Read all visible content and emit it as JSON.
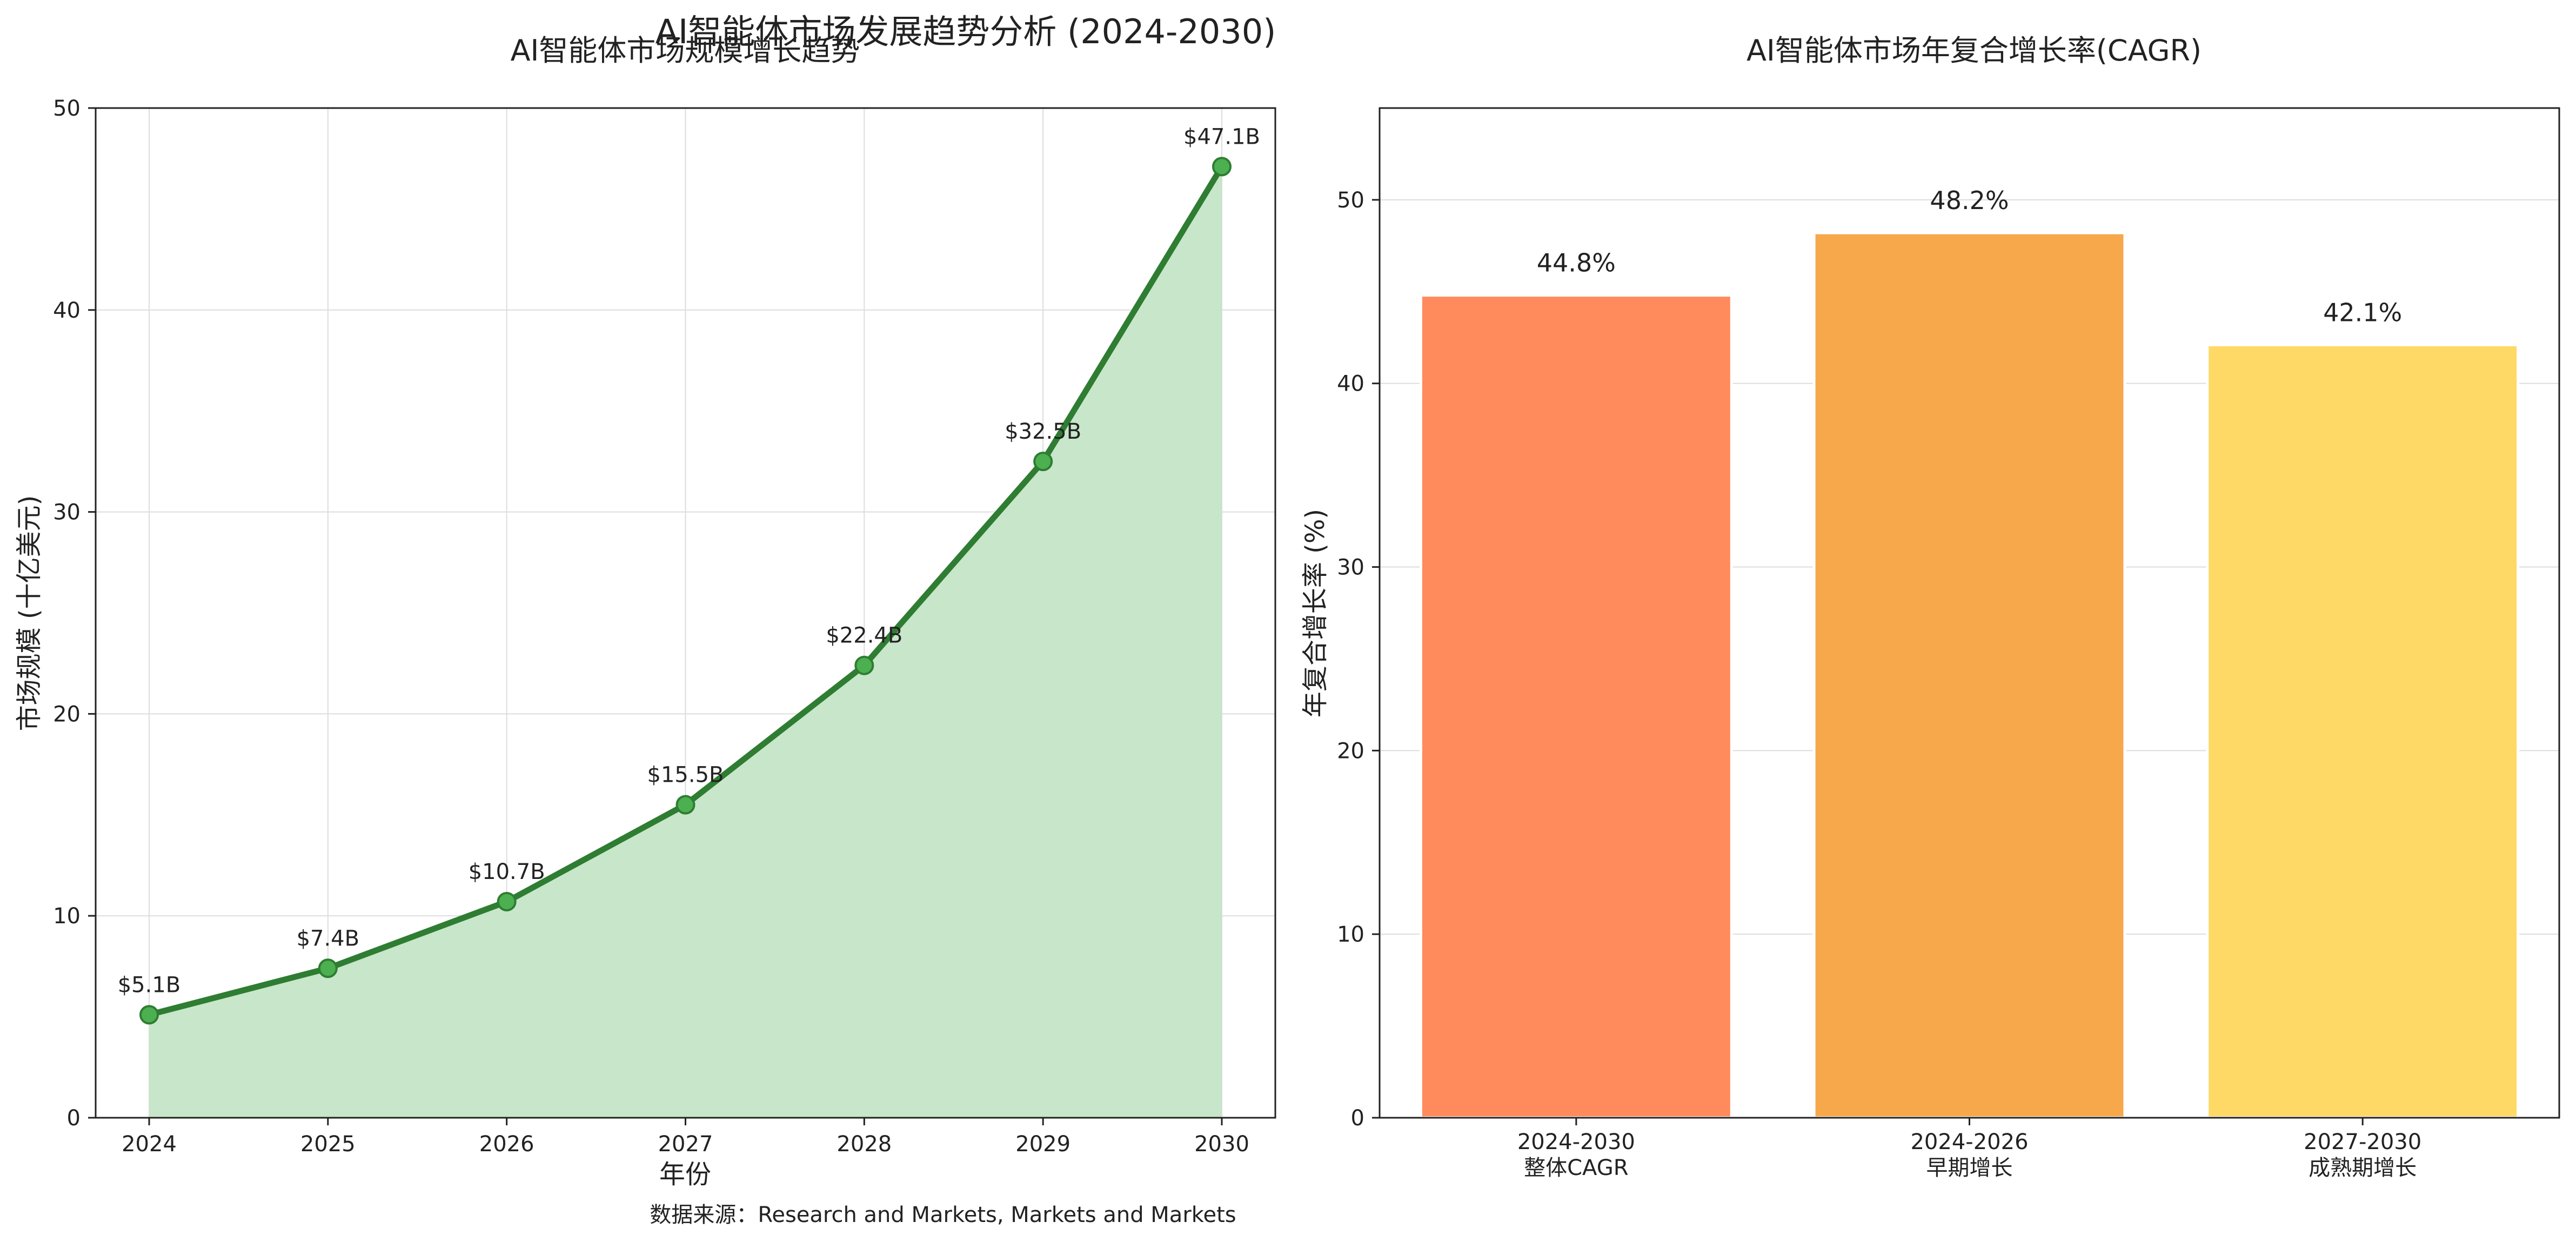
{
  "title": "AI智能体市场发展趋势分析 (2024-2030)",
  "source_note": "数据来源：Research and Markets, Markets and Markets",
  "colors": {
    "line": "#2e7d32",
    "area": "#c8e6c9",
    "marker": "#4caf50",
    "bars": [
      "#ff8a5c",
      "#f6a84a",
      "#ffd966"
    ]
  },
  "chart_data": [
    {
      "type": "line",
      "title": "AI智能体市场规模增长趋势",
      "xlabel": "年份",
      "ylabel": "市场规模 (十亿美元)",
      "x": [
        "2024",
        "2025",
        "2026",
        "2027",
        "2028",
        "2029",
        "2030"
      ],
      "values": [
        5.1,
        7.4,
        10.7,
        15.5,
        22.4,
        32.5,
        47.1
      ],
      "data_labels": [
        "$5.1B",
        "$7.4B",
        "$10.7B",
        "$15.5B",
        "$22.4B",
        "$32.5B",
        "$47.1B"
      ],
      "ylim": [
        0,
        50
      ],
      "yticks": [
        0,
        10,
        20,
        30,
        40,
        50
      ],
      "area_fill": true,
      "grid": true
    },
    {
      "type": "bar",
      "title": "AI智能体市场年复合增长率(CAGR)",
      "xlabel": "",
      "ylabel": "年复合增长率 (%)",
      "categories": [
        "2024-2030",
        "2024-2026",
        "2027-2030"
      ],
      "category_sublabels": [
        "整体CAGR",
        "早期增长",
        "成熟期增长"
      ],
      "values": [
        44.8,
        48.2,
        42.1
      ],
      "data_labels": [
        "44.8%",
        "48.2%",
        "42.1%"
      ],
      "ylim": [
        0,
        55
      ],
      "yticks": [
        0,
        10,
        20,
        30,
        40,
        50
      ],
      "grid": true
    }
  ]
}
